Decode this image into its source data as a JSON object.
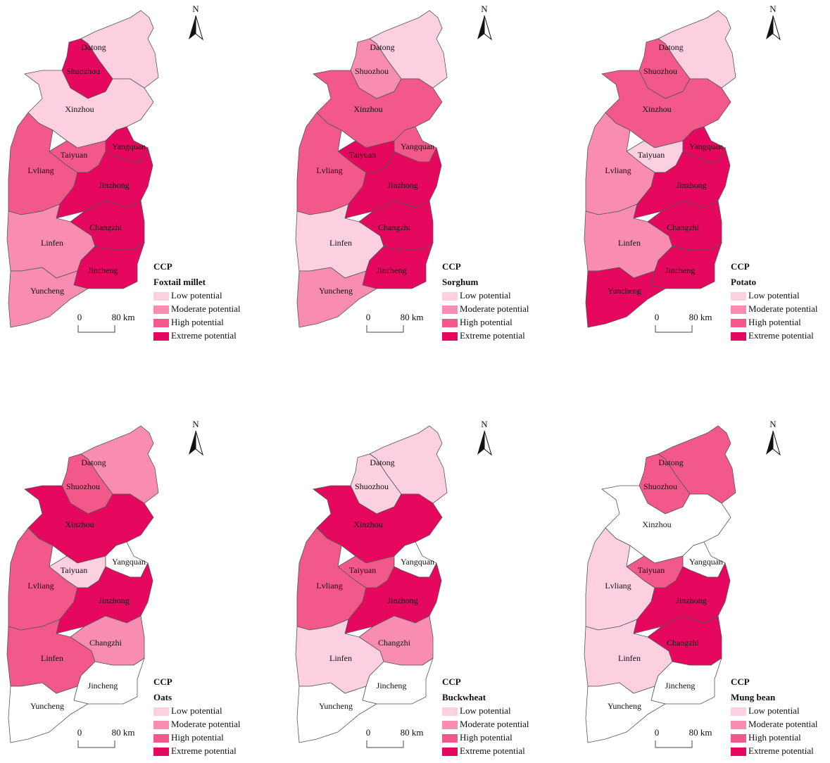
{
  "north": "N",
  "legend_title": "CCP",
  "levels": [
    {
      "label": "Low potential",
      "color": "#fcd0e1"
    },
    {
      "label": "Moderate potential",
      "color": "#f98db1"
    },
    {
      "label": "High potential",
      "color": "#f2588a"
    },
    {
      "label": "Extreme potential",
      "color": "#e6085f"
    }
  ],
  "no_data_color": "#ffffff",
  "scale_labels": [
    "0",
    "80 km"
  ],
  "regions": [
    "Datong",
    "Shuozhou",
    "Xinzhou",
    "Taiyuan",
    "Yangquan",
    "Lvliang",
    "Jinzhong",
    "Changzhi",
    "Linfen",
    "Jincheng",
    "Yuncheng"
  ],
  "panels": [
    {
      "crop": "Foxtail millet",
      "region_levels": [
        0,
        3,
        0,
        2,
        3,
        2,
        3,
        3,
        1,
        3,
        1
      ]
    },
    {
      "crop": "Sorghum",
      "region_levels": [
        0,
        1,
        2,
        3,
        2,
        2,
        3,
        3,
        0,
        3,
        1
      ]
    },
    {
      "crop": "Potato",
      "region_levels": [
        0,
        2,
        2,
        0,
        3,
        1,
        3,
        3,
        1,
        3,
        3
      ]
    },
    {
      "crop": "Oats",
      "region_levels": [
        1,
        2,
        3,
        0,
        null,
        2,
        3,
        1,
        2,
        null,
        null
      ]
    },
    {
      "crop": "Buckwheat",
      "region_levels": [
        0,
        0,
        3,
        2,
        null,
        2,
        3,
        1,
        0,
        null,
        null
      ]
    },
    {
      "crop": "Mung bean",
      "region_levels": [
        2,
        2,
        null,
        2,
        null,
        0,
        3,
        3,
        0,
        null,
        null
      ]
    }
  ]
}
